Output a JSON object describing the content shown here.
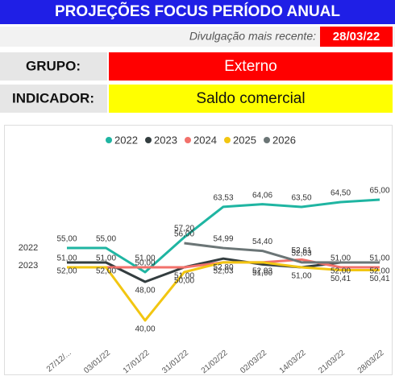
{
  "header": {
    "title": "PROJEÇÕES FOCUS PERÍODO ANUAL",
    "release_label": "Divulgação mais recente:",
    "release_date": "28/03/22"
  },
  "filters": [
    {
      "label": "GRUPO:",
      "value": "Externo"
    },
    {
      "label": "INDICADOR:",
      "value": "Saldo comercial"
    }
  ],
  "chart_data": {
    "type": "line",
    "categories": [
      "27/12/...",
      "03/01/22",
      "17/01/22",
      "31/01/22",
      "21/02/22",
      "02/03/22",
      "14/03/22",
      "21/03/22",
      "28/03/22"
    ],
    "ylim": [
      36,
      68
    ],
    "legend": "top",
    "series": [
      {
        "name": "2022",
        "color": "#1fb5a2",
        "values": [
          55,
          55,
          50,
          57.2,
          63.53,
          64.06,
          63.5,
          64.5,
          65
        ],
        "value_labels": [
          "55,00",
          "55,00",
          "50,00",
          "57,20",
          "63,53",
          "64,06",
          "63,50",
          "64,50",
          "65,00"
        ]
      },
      {
        "name": "2023",
        "color": "#333d3f",
        "values": [
          52,
          52,
          48,
          51,
          52.8,
          51.6,
          51,
          52,
          52
        ],
        "value_labels": [
          "52,00",
          "52,00",
          "48,00",
          "51,00",
          "52,80",
          "51,60",
          "51,00",
          "52,00",
          "52,00"
        ]
      },
      {
        "name": "2024",
        "color": "#f2716b",
        "values": [
          51,
          51,
          51,
          51,
          52.03,
          52.03,
          52.61,
          51,
          51
        ],
        "value_labels": [
          "51,00",
          "51,00",
          "51,00",
          null,
          null,
          null,
          "52,61",
          "51,00",
          "51,00"
        ]
      },
      {
        "name": "2025",
        "color": "#f2c611",
        "values": [
          51,
          51,
          40,
          50,
          52.03,
          52.03,
          51,
          50.41,
          50.41
        ],
        "value_labels": [
          null,
          null,
          "40,00",
          "50,00",
          "52,03",
          "52,03",
          null,
          "50,41",
          "50,41"
        ]
      },
      {
        "name": "2026",
        "color": "#6b7576",
        "values": [
          null,
          null,
          null,
          56,
          54.99,
          54.4,
          52.03,
          52,
          52
        ],
        "value_labels": [
          null,
          null,
          null,
          "56,00",
          "54,99",
          "54,40",
          "52,03",
          null,
          null
        ]
      }
    ]
  }
}
